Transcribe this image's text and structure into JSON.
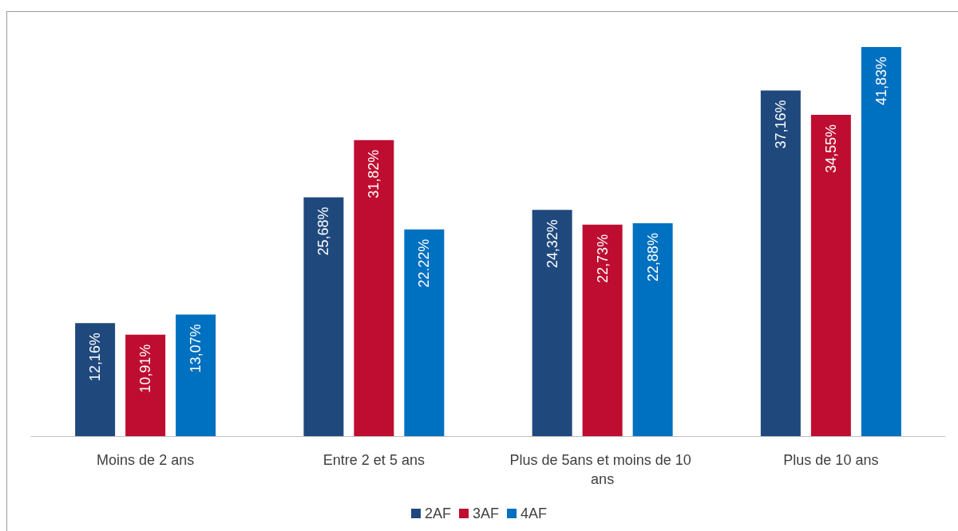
{
  "chart_data": {
    "type": "bar",
    "categories": [
      "Moins de 2 ans",
      "Entre 2 et 5 ans",
      "Plus de 5ans et moins de 10 ans",
      "Plus de 10 ans"
    ],
    "series": [
      {
        "name": "2AF",
        "color": "#1f497d",
        "values": [
          12.16,
          25.68,
          24.32,
          37.16
        ],
        "value_labels": [
          "12,16%",
          "25,68%",
          "24,32%",
          "37,16%"
        ]
      },
      {
        "name": "3AF",
        "color": "#be0d30",
        "values": [
          10.91,
          31.82,
          22.73,
          34.55
        ],
        "value_labels": [
          "10,91%",
          "31,82%",
          "22,73%",
          "34,55%"
        ]
      },
      {
        "name": "4AF",
        "color": "#0070c0",
        "values": [
          13.07,
          22.22,
          22.88,
          41.83
        ],
        "value_labels": [
          "13,07%",
          "22.22%",
          "22,88%",
          "41,83%"
        ]
      }
    ],
    "legend": "bottom"
  }
}
